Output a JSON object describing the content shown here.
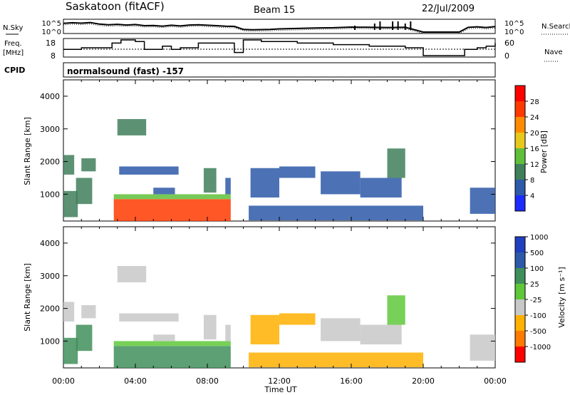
{
  "header": {
    "station": "Saskatoon (fitACF)",
    "beam": "Beam 15",
    "date": "22/Jul/2009"
  },
  "labels": {
    "nsky": "N.Sky",
    "nsearch": "N.Search",
    "freq_line1": "Freq.",
    "freq_line2": "[MHz]",
    "nave": "Nave",
    "cpid": "CPID",
    "cpid_value": "normalsound (fast) -157",
    "power_unit": "Power [dB]",
    "velocity_unit": "Velocity [m s⁻¹]"
  },
  "chart_data": [
    {
      "type": "line",
      "name": "noise-panel",
      "left_axis": {
        "label": "N.Sky",
        "tick_labels": [
          "10^5",
          "10^0"
        ]
      },
      "right_axis": {
        "label": "N.Search",
        "tick_labels": [
          "10^5",
          "10^0"
        ]
      },
      "x": [
        0,
        0.5,
        1,
        1.5,
        2,
        2.5,
        3,
        3.5,
        4,
        4.5,
        5,
        5.5,
        6,
        6.5,
        7,
        7.5,
        8,
        8.5,
        9,
        9.5,
        10,
        10.5,
        11,
        11.5,
        12,
        13,
        14,
        15,
        16,
        17,
        18,
        19,
        20,
        21,
        22,
        22.5,
        23,
        23.5,
        24
      ],
      "series": [
        {
          "values": [
            3.8,
            4.1,
            3.9,
            4.2,
            3.5,
            3.2,
            3.4,
            3.1,
            3.3,
            2.8,
            2.9,
            2.6,
            3.0,
            2.7,
            3.1,
            3.2,
            3.0,
            2.8,
            2.6,
            2.5,
            1.2,
            1.0,
            1.1,
            1.2,
            1.4,
            1.6,
            1.8,
            1.9,
            2.2,
            2.1,
            2.0,
            2.1,
            0.0,
            0.0,
            0.0,
            2.1,
            2.3,
            2.0,
            2.4
          ]
        }
      ]
    },
    {
      "type": "line",
      "name": "frequency-panel",
      "left_axis": {
        "label": "Freq. [MHz]",
        "tick_labels": [
          "18",
          "8"
        ]
      },
      "right_axis": {
        "label": "Nave",
        "tick_labels": [
          "60",
          "0"
        ]
      },
      "x": [
        0,
        1,
        2,
        2.7,
        3.2,
        4,
        4.5,
        5.5,
        6,
        6.5,
        7.5,
        8,
        9.5,
        10,
        11,
        12,
        13,
        14,
        15,
        16,
        17,
        18,
        19,
        20,
        22.3,
        23,
        23.5,
        24
      ],
      "series": [
        {
          "values": [
            12,
            13,
            13,
            16,
            18,
            17,
            12,
            14,
            12,
            13,
            16,
            16,
            10,
            18,
            17,
            17,
            16,
            16,
            15,
            15,
            14,
            14,
            13,
            8,
            12,
            13,
            14,
            16
          ]
        }
      ]
    },
    {
      "type": "heatmap",
      "name": "power-panel",
      "title": "Beam 15",
      "ylabel": "Slant Range [km]",
      "xlim": [
        0,
        24
      ],
      "ylim": [
        180,
        4500
      ],
      "x_tick_labels": [
        "00:00",
        "04:00",
        "08:00",
        "12:00",
        "16:00",
        "20:00",
        "00:00"
      ],
      "y_tick_labels": [
        "1000",
        "2000",
        "3000",
        "4000"
      ],
      "colorbar": {
        "label": "Power [dB]",
        "tick_labels": [
          "4",
          "8",
          "12",
          "16",
          "20",
          "24",
          "28"
        ],
        "range": [
          0,
          30
        ]
      },
      "regions": [
        {
          "t0": 0.0,
          "t1": 0.6,
          "r0": 1600,
          "r1": 2200,
          "value": 8
        },
        {
          "t0": 0.0,
          "t1": 0.8,
          "r0": 300,
          "r1": 1100,
          "value": 10
        },
        {
          "t0": 0.7,
          "t1": 1.6,
          "r0": 700,
          "r1": 1500,
          "value": 9
        },
        {
          "t0": 1.0,
          "t1": 1.8,
          "r0": 1700,
          "r1": 2100,
          "value": 8
        },
        {
          "t0": 2.8,
          "t1": 9.3,
          "r0": 180,
          "r1": 850,
          "value": 26
        },
        {
          "t0": 2.8,
          "t1": 9.3,
          "r0": 850,
          "r1": 1000,
          "value": 14
        },
        {
          "t0": 3.0,
          "t1": 4.6,
          "r0": 2800,
          "r1": 3300,
          "value": 9
        },
        {
          "t0": 3.1,
          "t1": 6.4,
          "r0": 1600,
          "r1": 1850,
          "value": 7
        },
        {
          "t0": 5.0,
          "t1": 6.2,
          "r0": 1000,
          "r1": 1200,
          "value": 6
        },
        {
          "t0": 7.8,
          "t1": 8.5,
          "r0": 1050,
          "r1": 1800,
          "value": 8
        },
        {
          "t0": 9.0,
          "t1": 9.3,
          "r0": 1000,
          "r1": 1500,
          "value": 7
        },
        {
          "t0": 10.3,
          "t1": 20.0,
          "r0": 200,
          "r1": 650,
          "value": 6
        },
        {
          "t0": 10.4,
          "t1": 12.0,
          "r0": 900,
          "r1": 1800,
          "value": 6
        },
        {
          "t0": 12.0,
          "t1": 14.0,
          "r0": 1500,
          "r1": 1850,
          "value": 7
        },
        {
          "t0": 14.3,
          "t1": 16.5,
          "r0": 1000,
          "r1": 1700,
          "value": 6
        },
        {
          "t0": 16.5,
          "t1": 18.8,
          "r0": 900,
          "r1": 1500,
          "value": 7
        },
        {
          "t0": 18.0,
          "t1": 19.0,
          "r0": 1500,
          "r1": 2400,
          "value": 8
        },
        {
          "t0": 22.6,
          "t1": 24.0,
          "r0": 400,
          "r1": 1200,
          "value": 6
        }
      ]
    },
    {
      "type": "heatmap",
      "name": "velocity-panel",
      "ylabel": "Slant Range [km]",
      "xlabel": "Time UT",
      "xlim": [
        0,
        24
      ],
      "ylim": [
        180,
        4500
      ],
      "x_tick_labels": [
        "00:00",
        "04:00",
        "08:00",
        "12:00",
        "16:00",
        "20:00",
        "00:00"
      ],
      "y_tick_labels": [
        "1000",
        "2000",
        "3000",
        "4000"
      ],
      "colorbar": {
        "label": "Velocity [m s⁻¹]",
        "tick_labels": [
          "1000",
          "500",
          "100",
          "25",
          "-25",
          "-100",
          "-500",
          "-1000"
        ]
      },
      "regions": [
        {
          "t0": 0.0,
          "t1": 0.6,
          "r0": 1600,
          "r1": 2200,
          "value": 0
        },
        {
          "t0": 0.0,
          "t1": 0.8,
          "r0": 300,
          "r1": 1100,
          "value": 150
        },
        {
          "t0": 0.7,
          "t1": 1.6,
          "r0": 700,
          "r1": 1500,
          "value": 400
        },
        {
          "t0": 1.0,
          "t1": 1.8,
          "r0": 1700,
          "r1": 2100,
          "value": 0
        },
        {
          "t0": 2.8,
          "t1": 9.3,
          "r0": 180,
          "r1": 850,
          "value": 150
        },
        {
          "t0": 2.8,
          "t1": 9.3,
          "r0": 850,
          "r1": 1000,
          "value": 60
        },
        {
          "t0": 3.0,
          "t1": 4.6,
          "r0": 2800,
          "r1": 3300,
          "value": 0
        },
        {
          "t0": 3.1,
          "t1": 6.4,
          "r0": 1600,
          "r1": 1850,
          "value": 0
        },
        {
          "t0": 5.0,
          "t1": 6.2,
          "r0": 1000,
          "r1": 1200,
          "value": 0
        },
        {
          "t0": 7.8,
          "t1": 8.5,
          "r0": 1050,
          "r1": 1800,
          "value": 0
        },
        {
          "t0": 9.0,
          "t1": 9.3,
          "r0": 1000,
          "r1": 1500,
          "value": 0
        },
        {
          "t0": 10.3,
          "t1": 20.0,
          "r0": 200,
          "r1": 650,
          "value": -60
        },
        {
          "t0": 10.4,
          "t1": 12.0,
          "r0": 900,
          "r1": 1800,
          "value": -40
        },
        {
          "t0": 12.0,
          "t1": 14.0,
          "r0": 1500,
          "r1": 1850,
          "value": -40
        },
        {
          "t0": 14.3,
          "t1": 16.5,
          "r0": 1000,
          "r1": 1700,
          "value": 0
        },
        {
          "t0": 16.5,
          "t1": 18.8,
          "r0": 900,
          "r1": 1500,
          "value": 0
        },
        {
          "t0": 18.0,
          "t1": 19.0,
          "r0": 1500,
          "r1": 2400,
          "value": 100
        },
        {
          "t0": 22.6,
          "t1": 24.0,
          "r0": 400,
          "r1": 1200,
          "value": 0
        }
      ]
    }
  ],
  "colors": {
    "power_scale": [
      "#1d2bff",
      "#2d59a8",
      "#3f7f5a",
      "#5fbf3a",
      "#e8c81a",
      "#ff8c00",
      "#ff3a00",
      "#ff0000"
    ],
    "velocity_scale": [
      "#ff0000",
      "#ff7a00",
      "#ffb000",
      "#c8c8c8",
      "#5fc83a",
      "#3f8f5a",
      "#2d59a8",
      "#1f3fbf"
    ]
  }
}
